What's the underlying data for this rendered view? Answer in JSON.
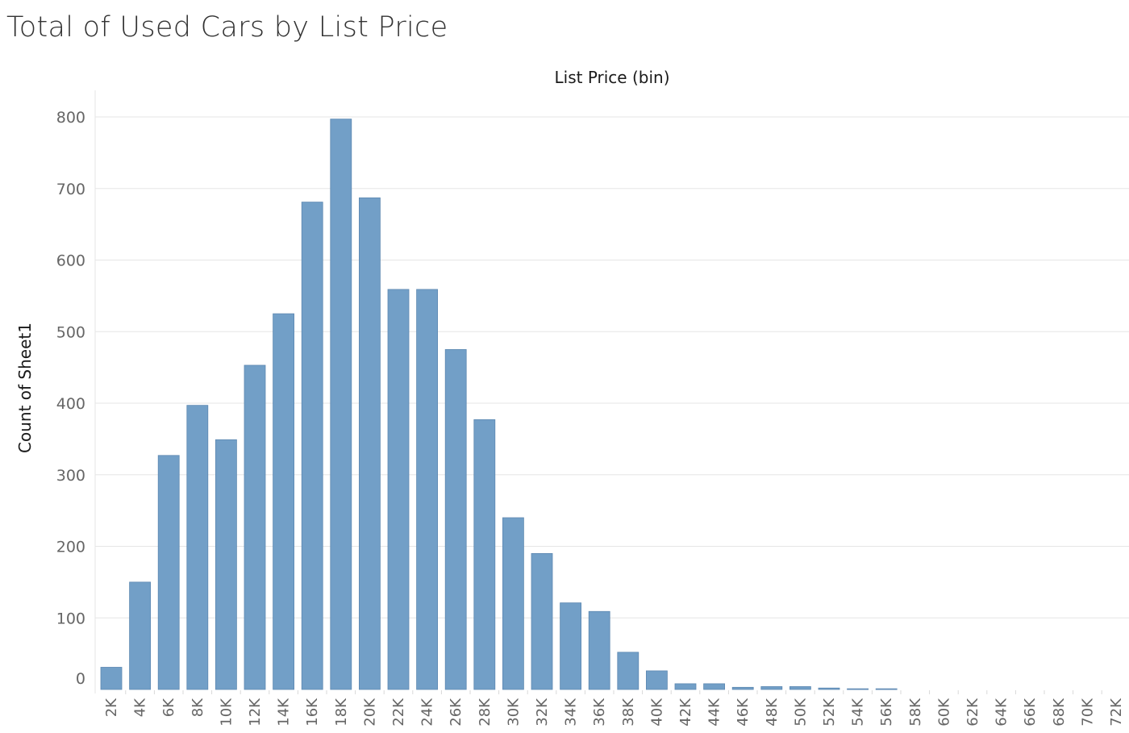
{
  "title": "Total of Used Cars by List Price",
  "chart_data": {
    "type": "bar",
    "title": "Total of Used Cars by List Price",
    "xlabel": "List Price (bin)",
    "ylabel": "Count of Sheet1",
    "ylim": [
      0,
      800
    ],
    "yticks": [
      0,
      100,
      200,
      300,
      400,
      500,
      600,
      700,
      800
    ],
    "grid": true,
    "categories": [
      "2K",
      "4K",
      "6K",
      "8K",
      "10K",
      "12K",
      "14K",
      "16K",
      "18K",
      "20K",
      "22K",
      "24K",
      "26K",
      "28K",
      "30K",
      "32K",
      "34K",
      "36K",
      "38K",
      "40K",
      "42K",
      "44K",
      "46K",
      "48K",
      "50K",
      "52K",
      "54K",
      "56K",
      "58K",
      "60K",
      "62K",
      "64K",
      "66K",
      "68K",
      "70K",
      "72K"
    ],
    "values": [
      31,
      150,
      327,
      397,
      349,
      453,
      525,
      681,
      797,
      687,
      559,
      559,
      475,
      377,
      240,
      190,
      121,
      109,
      52,
      26,
      8,
      8,
      3,
      4,
      4,
      2,
      1,
      1,
      0,
      0,
      0,
      0,
      0,
      0,
      0,
      0
    ],
    "colors": {
      "bar": "#729fc7",
      "bar_stroke": "#5d88b1",
      "grid": "#e6e6e6",
      "axis_text": "#666666"
    }
  }
}
